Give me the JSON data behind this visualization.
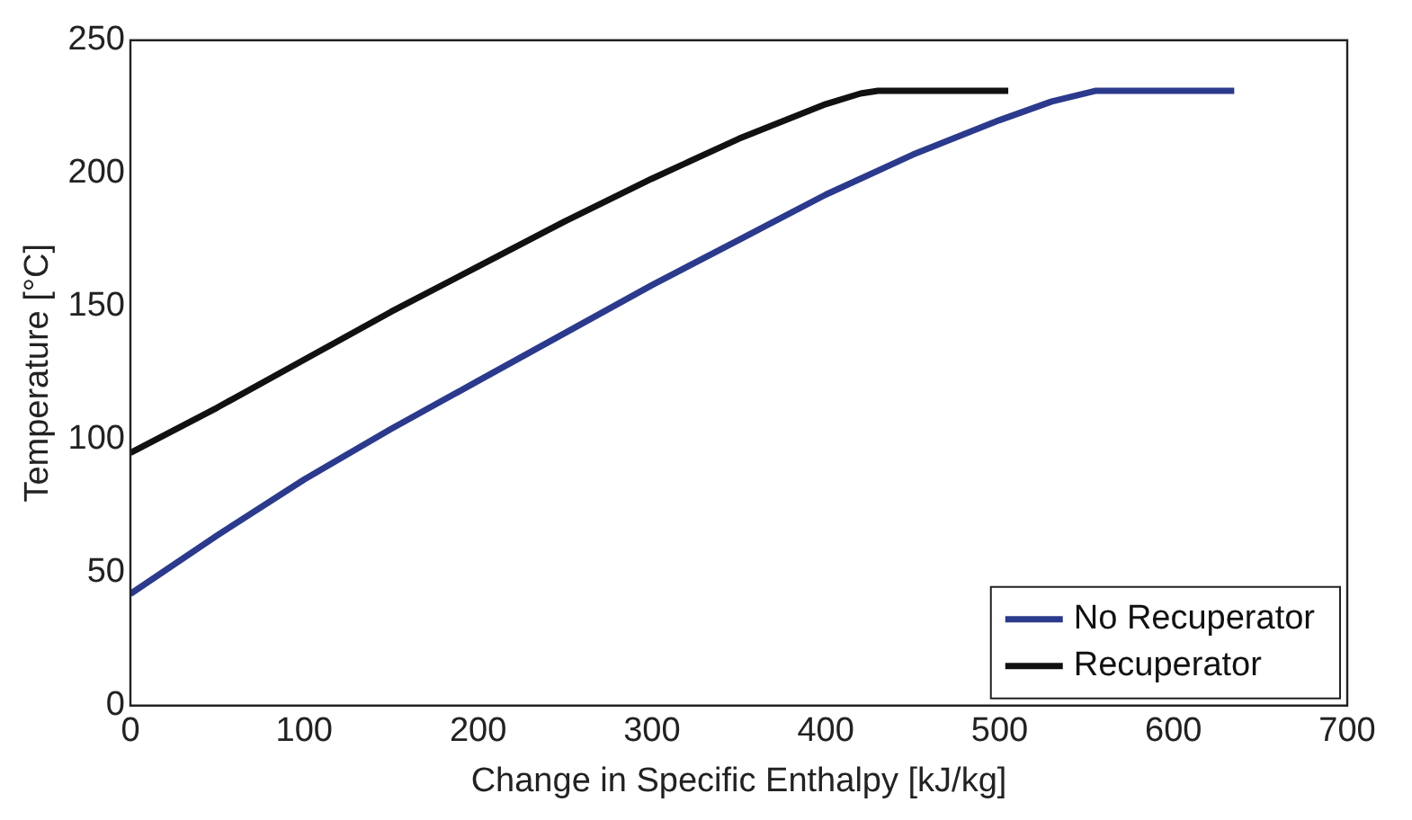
{
  "chart_data": {
    "type": "line",
    "xlabel": "Change in Specific Enthalpy [kJ/kg]",
    "ylabel": "Temperature [°C]",
    "xlim": [
      0,
      700
    ],
    "xticks": [
      0,
      100,
      200,
      300,
      400,
      500,
      600,
      700
    ],
    "ylim": [
      0,
      250
    ],
    "yticks": [
      0,
      50,
      100,
      150,
      200,
      250
    ],
    "legend": "bottom right",
    "marker": "none",
    "line_style": "solid",
    "grid": false,
    "series": [
      {
        "name": "No Recuperator",
        "color": "#2b3a8c",
        "x": [
          0,
          50,
          100,
          150,
          200,
          250,
          300,
          350,
          400,
          450,
          500,
          530,
          555,
          635
        ],
        "values": [
          42,
          64,
          85,
          104,
          122,
          140,
          158,
          175,
          192,
          207,
          220,
          227,
          231,
          231
        ]
      },
      {
        "name": "Recuperator",
        "color": "#111111",
        "x": [
          0,
          50,
          100,
          150,
          200,
          250,
          300,
          350,
          400,
          420,
          430,
          505
        ],
        "values": [
          95,
          112,
          130,
          148,
          165,
          182,
          198,
          213,
          226,
          230,
          231,
          231
        ]
      }
    ]
  }
}
